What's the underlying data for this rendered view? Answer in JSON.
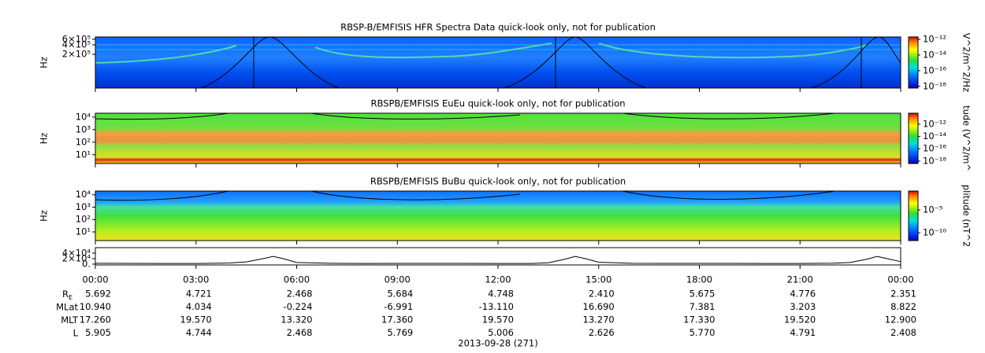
{
  "panels": [
    {
      "title": "RBSP-B/EMFISIS  HFR Spectra Data quick-look only, not for publication",
      "ylabel": "Hz",
      "log": true,
      "ylim": [
        17000,
        710000
      ],
      "yticks": [
        {
          "value": 600000,
          "label": "6×10⁵"
        },
        {
          "value": 400000,
          "label": "4×10⁵"
        },
        {
          "value": 200000,
          "label": "2×10⁵"
        }
      ],
      "colorbar": {
        "label": "V^2/m^2/Hz",
        "zlim": [
          6e-19,
          2e-12
        ],
        "ticks": [
          {
            "value": 1e-12,
            "label": "10⁻¹²"
          },
          {
            "value": 1e-14,
            "label": "10⁻¹⁴"
          },
          {
            "value": 1e-16,
            "label": "10⁻¹⁶"
          },
          {
            "value": 1e-18,
            "label": "10⁻¹⁸"
          }
        ]
      }
    },
    {
      "title": "RBSPB/EMFISIS  EuEu quick-look only, not for publication",
      "ylabel": "Hz",
      "log": true,
      "ylim": [
        2,
        20000
      ],
      "yticks": [
        {
          "value": 10000,
          "label": "10⁴"
        },
        {
          "value": 1000,
          "label": "10³"
        },
        {
          "value": 100,
          "label": "10²"
        },
        {
          "value": 10,
          "label": "10¹"
        }
      ],
      "colorbar": {
        "label": "tude (V^2/m^",
        "zlim": [
          4e-19,
          6e-11
        ],
        "ticks": [
          {
            "value": 1e-12,
            "label": "10⁻¹²"
          },
          {
            "value": 1e-14,
            "label": "10⁻¹⁴"
          },
          {
            "value": 1e-16,
            "label": "10⁻¹⁶"
          },
          {
            "value": 1e-18,
            "label": "10⁻¹⁸"
          }
        ]
      }
    },
    {
      "title": "RBSPB/EMFISIS  BuBu quick-look only, not for publication",
      "ylabel": "Hz",
      "log": true,
      "ylim": [
        2,
        20000
      ],
      "yticks": [
        {
          "value": 10000,
          "label": "10⁴"
        },
        {
          "value": 1000,
          "label": "10³"
        },
        {
          "value": 100,
          "label": "10²"
        },
        {
          "value": 10,
          "label": "10¹"
        }
      ],
      "colorbar": {
        "label": "plitude (nT^2",
        "zlim": [
          2e-12,
          0.13
        ],
        "ticks": [
          {
            "value": 1e-05,
            "label": "10⁻⁵"
          },
          {
            "value": 1e-10,
            "label": "10⁻¹⁰"
          }
        ]
      }
    }
  ],
  "line_panel": {
    "type": "line",
    "color": "#000000",
    "ylim": [
      -3000,
      60000
    ],
    "yticks": [
      {
        "value": 40000,
        "label": "4×10⁴"
      },
      {
        "value": 20000,
        "label": "2×10⁴"
      },
      {
        "value": 0,
        "label": "0."
      }
    ],
    "x": [
      0,
      1,
      2,
      3,
      4,
      4.5,
      5,
      5.3,
      5.6,
      6,
      7,
      8,
      9,
      10,
      11,
      12,
      13,
      13.5,
      14,
      14.3,
      14.6,
      15,
      16,
      17,
      18,
      19,
      20,
      21,
      22,
      22.5,
      23,
      23.3,
      23.6,
      24
    ],
    "values": [
      3000,
      2800,
      2500,
      2200,
      4000,
      8000,
      20000,
      28000,
      20000,
      6000,
      3000,
      2500,
      2600,
      2800,
      2600,
      2300,
      2500,
      5000,
      18000,
      28000,
      20000,
      7000,
      3000,
      2800,
      2700,
      2600,
      2500,
      2400,
      3500,
      6000,
      18000,
      28000,
      20000,
      9000
    ]
  },
  "time_axis": {
    "xlim": [
      0,
      24
    ],
    "ticks": [
      {
        "value": 0,
        "label": "00:00"
      },
      {
        "value": 3,
        "label": "03:00"
      },
      {
        "value": 6,
        "label": "06:00"
      },
      {
        "value": 9,
        "label": "09:00"
      },
      {
        "value": 12,
        "label": "12:00"
      },
      {
        "value": 15,
        "label": "15:00"
      },
      {
        "value": 18,
        "label": "18:00"
      },
      {
        "value": 21,
        "label": "21:00"
      },
      {
        "value": 24,
        "label": "00:00"
      }
    ]
  },
  "ephemeris": {
    "rows": [
      {
        "label": "R",
        "sub": "E",
        "values": [
          "5.692",
          "4.721",
          "2.468",
          "5.684",
          "4.748",
          "2.410",
          "5.675",
          "4.776",
          "2.351"
        ]
      },
      {
        "label": "MLat",
        "values": [
          "10.940",
          "4.034",
          "-0.224",
          "-6.991",
          "-13.110",
          "16.690",
          "7.381",
          "3.203",
          "8.822"
        ]
      },
      {
        "label": "MLT",
        "values": [
          "17.260",
          "19.570",
          "13.320",
          "17.360",
          "19.570",
          "13.270",
          "17.330",
          "19.520",
          "12.900"
        ]
      },
      {
        "label": "L",
        "values": [
          "5.905",
          "4.744",
          "2.468",
          "5.769",
          "5.006",
          "2.626",
          "5.770",
          "4.791",
          "2.408"
        ]
      }
    ]
  },
  "date": "2013-09-28 (271)"
}
